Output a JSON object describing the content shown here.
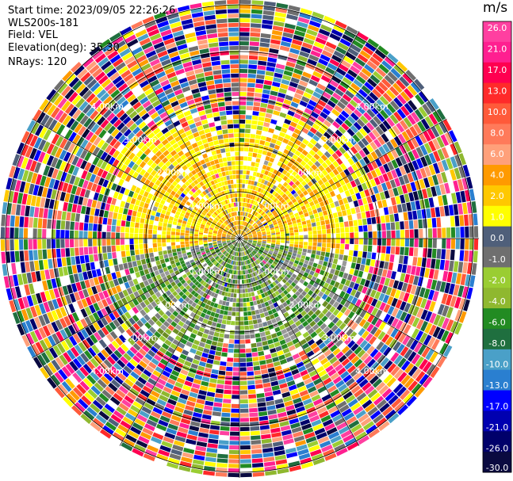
{
  "header": {
    "start_time": "Start time: 2023/09/05 22:26:26",
    "instrument": "WLS200s-181",
    "field": "Field: VEL",
    "elevation": "Elevation(deg): 35.30",
    "nrays": "NRays: 120"
  },
  "chart_data": {
    "type": "heatmap",
    "projection": "polar-ppi",
    "field": "VEL",
    "unit": "m/s",
    "nrays": 120,
    "elevation_deg": 35.3,
    "range_rings_labels": [
      "1.00km",
      "2.00km",
      "3.00km",
      "4.00km"
    ],
    "colorbar": {
      "unit": "m/s",
      "tick_labels": [
        "26.0",
        "21.0",
        "17.0",
        "13.0",
        "10.0",
        "8.0",
        "6.0",
        "4.0",
        "2.0",
        "1.0",
        "0.0",
        "-1.0",
        "-2.0",
        "-4.0",
        "-6.0",
        "-8.0",
        "-10.0",
        "-13.0",
        "-17.0",
        "-21.0",
        "-26.0",
        "-30.0"
      ],
      "colors": [
        "#ff3fa0",
        "#ff1f90",
        "#ff0050",
        "#ff2a2a",
        "#ff5a3a",
        "#ff7a5a",
        "#ffa07a",
        "#ff9a00",
        "#ffc800",
        "#ffff00",
        "#4f5f7a",
        "#6f6f6f",
        "#9acd32",
        "#8fb82f",
        "#228b22",
        "#1f6f3f",
        "#4aa0c8",
        "#2a7fd0",
        "#0000ff",
        "#0000b0",
        "#00006a",
        "#0a0a40"
      ]
    },
    "pattern": {
      "inner_description_note": "",
      "north_sector": "yellow/orange (positive, toward)",
      "south_sector": "green/grey (negative, away)",
      "outer": "noise"
    }
  }
}
